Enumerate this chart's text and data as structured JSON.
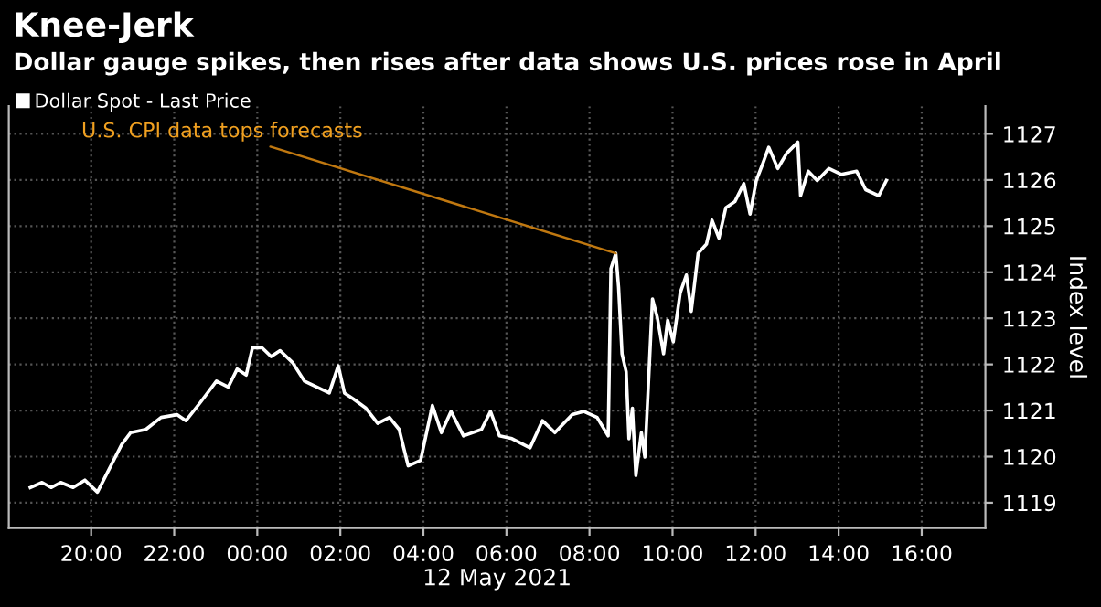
{
  "chart_data": {
    "type": "line",
    "title": "Knee-Jerk",
    "subtitle": "Dollar gauge spikes, then rises after data shows U.S. prices rose in April",
    "xlabel": "12 May 2021",
    "ylabel": "Index level",
    "x": [
      "2021-05-11T18:32",
      "2021-05-11T18:49",
      "2021-05-11T19:02",
      "2021-05-11T19:16",
      "2021-05-11T19:34",
      "2021-05-11T19:51",
      "2021-05-11T20:09",
      "2021-05-11T20:26",
      "2021-05-11T20:44",
      "2021-05-11T20:57",
      "2021-05-11T21:19",
      "2021-05-11T21:41",
      "2021-05-11T22:04",
      "2021-05-11T22:17",
      "2021-05-11T22:38",
      "2021-05-11T23:01",
      "2021-05-11T23:18",
      "2021-05-11T23:31",
      "2021-05-11T23:44",
      "2021-05-11T23:53",
      "2021-05-12T00:07",
      "2021-05-12T00:20",
      "2021-05-12T00:33",
      "2021-05-12T00:51",
      "2021-05-12T01:08",
      "2021-05-12T01:26",
      "2021-05-12T01:44",
      "2021-05-12T01:57",
      "2021-05-12T02:06",
      "2021-05-12T02:19",
      "2021-05-12T02:37",
      "2021-05-12T02:54",
      "2021-05-12T03:11",
      "2021-05-12T03:25",
      "2021-05-12T03:38",
      "2021-05-12T03:56",
      "2021-05-12T04:13",
      "2021-05-12T04:26",
      "2021-05-12T04:40",
      "2021-05-12T04:58",
      "2021-05-12T05:24",
      "2021-05-12T05:37",
      "2021-05-12T05:50",
      "2021-05-12T06:08",
      "2021-05-12T06:34",
      "2021-05-12T06:52",
      "2021-05-12T07:10",
      "2021-05-12T07:35",
      "2021-05-12T07:52",
      "2021-05-12T08:11",
      "2021-05-12T08:27",
      "2021-05-12T08:31",
      "2021-05-12T08:38",
      "2021-05-12T08:42",
      "2021-05-12T08:47",
      "2021-05-12T08:53",
      "2021-05-12T08:57",
      "2021-05-12T09:02",
      "2021-05-12T09:07",
      "2021-05-12T09:15",
      "2021-05-12T09:20",
      "2021-05-12T09:26",
      "2021-05-12T09:31",
      "2021-05-12T09:38",
      "2021-05-12T09:47",
      "2021-05-12T09:53",
      "2021-05-12T10:01",
      "2021-05-12T10:11",
      "2021-05-12T10:20",
      "2021-05-12T10:27",
      "2021-05-12T10:37",
      "2021-05-12T10:49",
      "2021-05-12T10:57",
      "2021-05-12T11:07",
      "2021-05-12T11:17",
      "2021-05-12T11:30",
      "2021-05-12T11:43",
      "2021-05-12T11:52",
      "2021-05-12T12:01",
      "2021-05-12T12:11",
      "2021-05-12T12:19",
      "2021-05-12T12:32",
      "2021-05-12T12:45",
      "2021-05-12T13:01",
      "2021-05-12T13:05",
      "2021-05-12T13:16",
      "2021-05-12T13:29",
      "2021-05-12T13:46",
      "2021-05-12T14:04",
      "2021-05-12T14:26",
      "2021-05-12T14:39",
      "2021-05-12T14:58",
      "2021-05-12T15:09"
    ],
    "series": [
      {
        "name": "Dollar Spot - Last Price",
        "color": "#ffffff",
        "values": [
          1119.33,
          1119.44,
          1119.33,
          1119.44,
          1119.33,
          1119.49,
          1119.23,
          1119.73,
          1120.26,
          1120.52,
          1120.59,
          1120.85,
          1120.91,
          1120.78,
          1121.18,
          1121.64,
          1121.51,
          1121.9,
          1121.77,
          1122.36,
          1122.36,
          1122.17,
          1122.3,
          1122.04,
          1121.64,
          1121.51,
          1121.38,
          1121.97,
          1121.38,
          1121.25,
          1121.05,
          1120.72,
          1120.85,
          1120.59,
          1119.8,
          1119.92,
          1121.11,
          1120.52,
          1120.98,
          1120.45,
          1120.59,
          1120.98,
          1120.45,
          1120.39,
          1120.19,
          1120.78,
          1120.52,
          1120.91,
          1120.98,
          1120.85,
          1120.45,
          1124.08,
          1124.41,
          1123.68,
          1122.23,
          1121.84,
          1120.39,
          1121.05,
          1119.59,
          1120.52,
          1119.99,
          1121.84,
          1123.42,
          1123.02,
          1122.23,
          1122.96,
          1122.49,
          1123.55,
          1123.94,
          1123.15,
          1124.41,
          1124.61,
          1125.13,
          1124.74,
          1125.4,
          1125.53,
          1125.92,
          1125.26,
          1125.99,
          1126.38,
          1126.71,
          1126.25,
          1126.58,
          1126.82,
          1125.66,
          1126.19,
          1125.99,
          1126.25,
          1126.12,
          1126.19,
          1125.79,
          1125.66,
          1125.99
        ]
      }
    ],
    "annotations": [
      {
        "text": "U.S. CPI data tops forecasts",
        "x": "2021-05-12T08:38",
        "y": 1124.41
      }
    ],
    "xlim": [
      "2021-05-11T18:01",
      "2021-05-12T17:32"
    ],
    "xticks": [
      {
        "value": "2021-05-11T20:00",
        "label": "20:00"
      },
      {
        "value": "2021-05-11T22:00",
        "label": "22:00"
      },
      {
        "value": "2021-05-12T00:00",
        "label": "00:00"
      },
      {
        "value": "2021-05-12T02:00",
        "label": "02:00"
      },
      {
        "value": "2021-05-12T04:00",
        "label": "04:00"
      },
      {
        "value": "2021-05-12T06:00",
        "label": "06:00"
      },
      {
        "value": "2021-05-12T08:00",
        "label": "08:00"
      },
      {
        "value": "2021-05-12T10:00",
        "label": "10:00"
      },
      {
        "value": "2021-05-12T12:00",
        "label": "12:00"
      },
      {
        "value": "2021-05-12T14:00",
        "label": "14:00"
      },
      {
        "value": "2021-05-12T16:00",
        "label": "16:00"
      }
    ],
    "ylim": [
      1118.45,
      1127.6
    ],
    "yticks": [
      1119,
      1120,
      1121,
      1122,
      1123,
      1124,
      1125,
      1126,
      1127
    ],
    "grid": true,
    "legend": "top left",
    "marker": "none",
    "line_style": "solid"
  }
}
